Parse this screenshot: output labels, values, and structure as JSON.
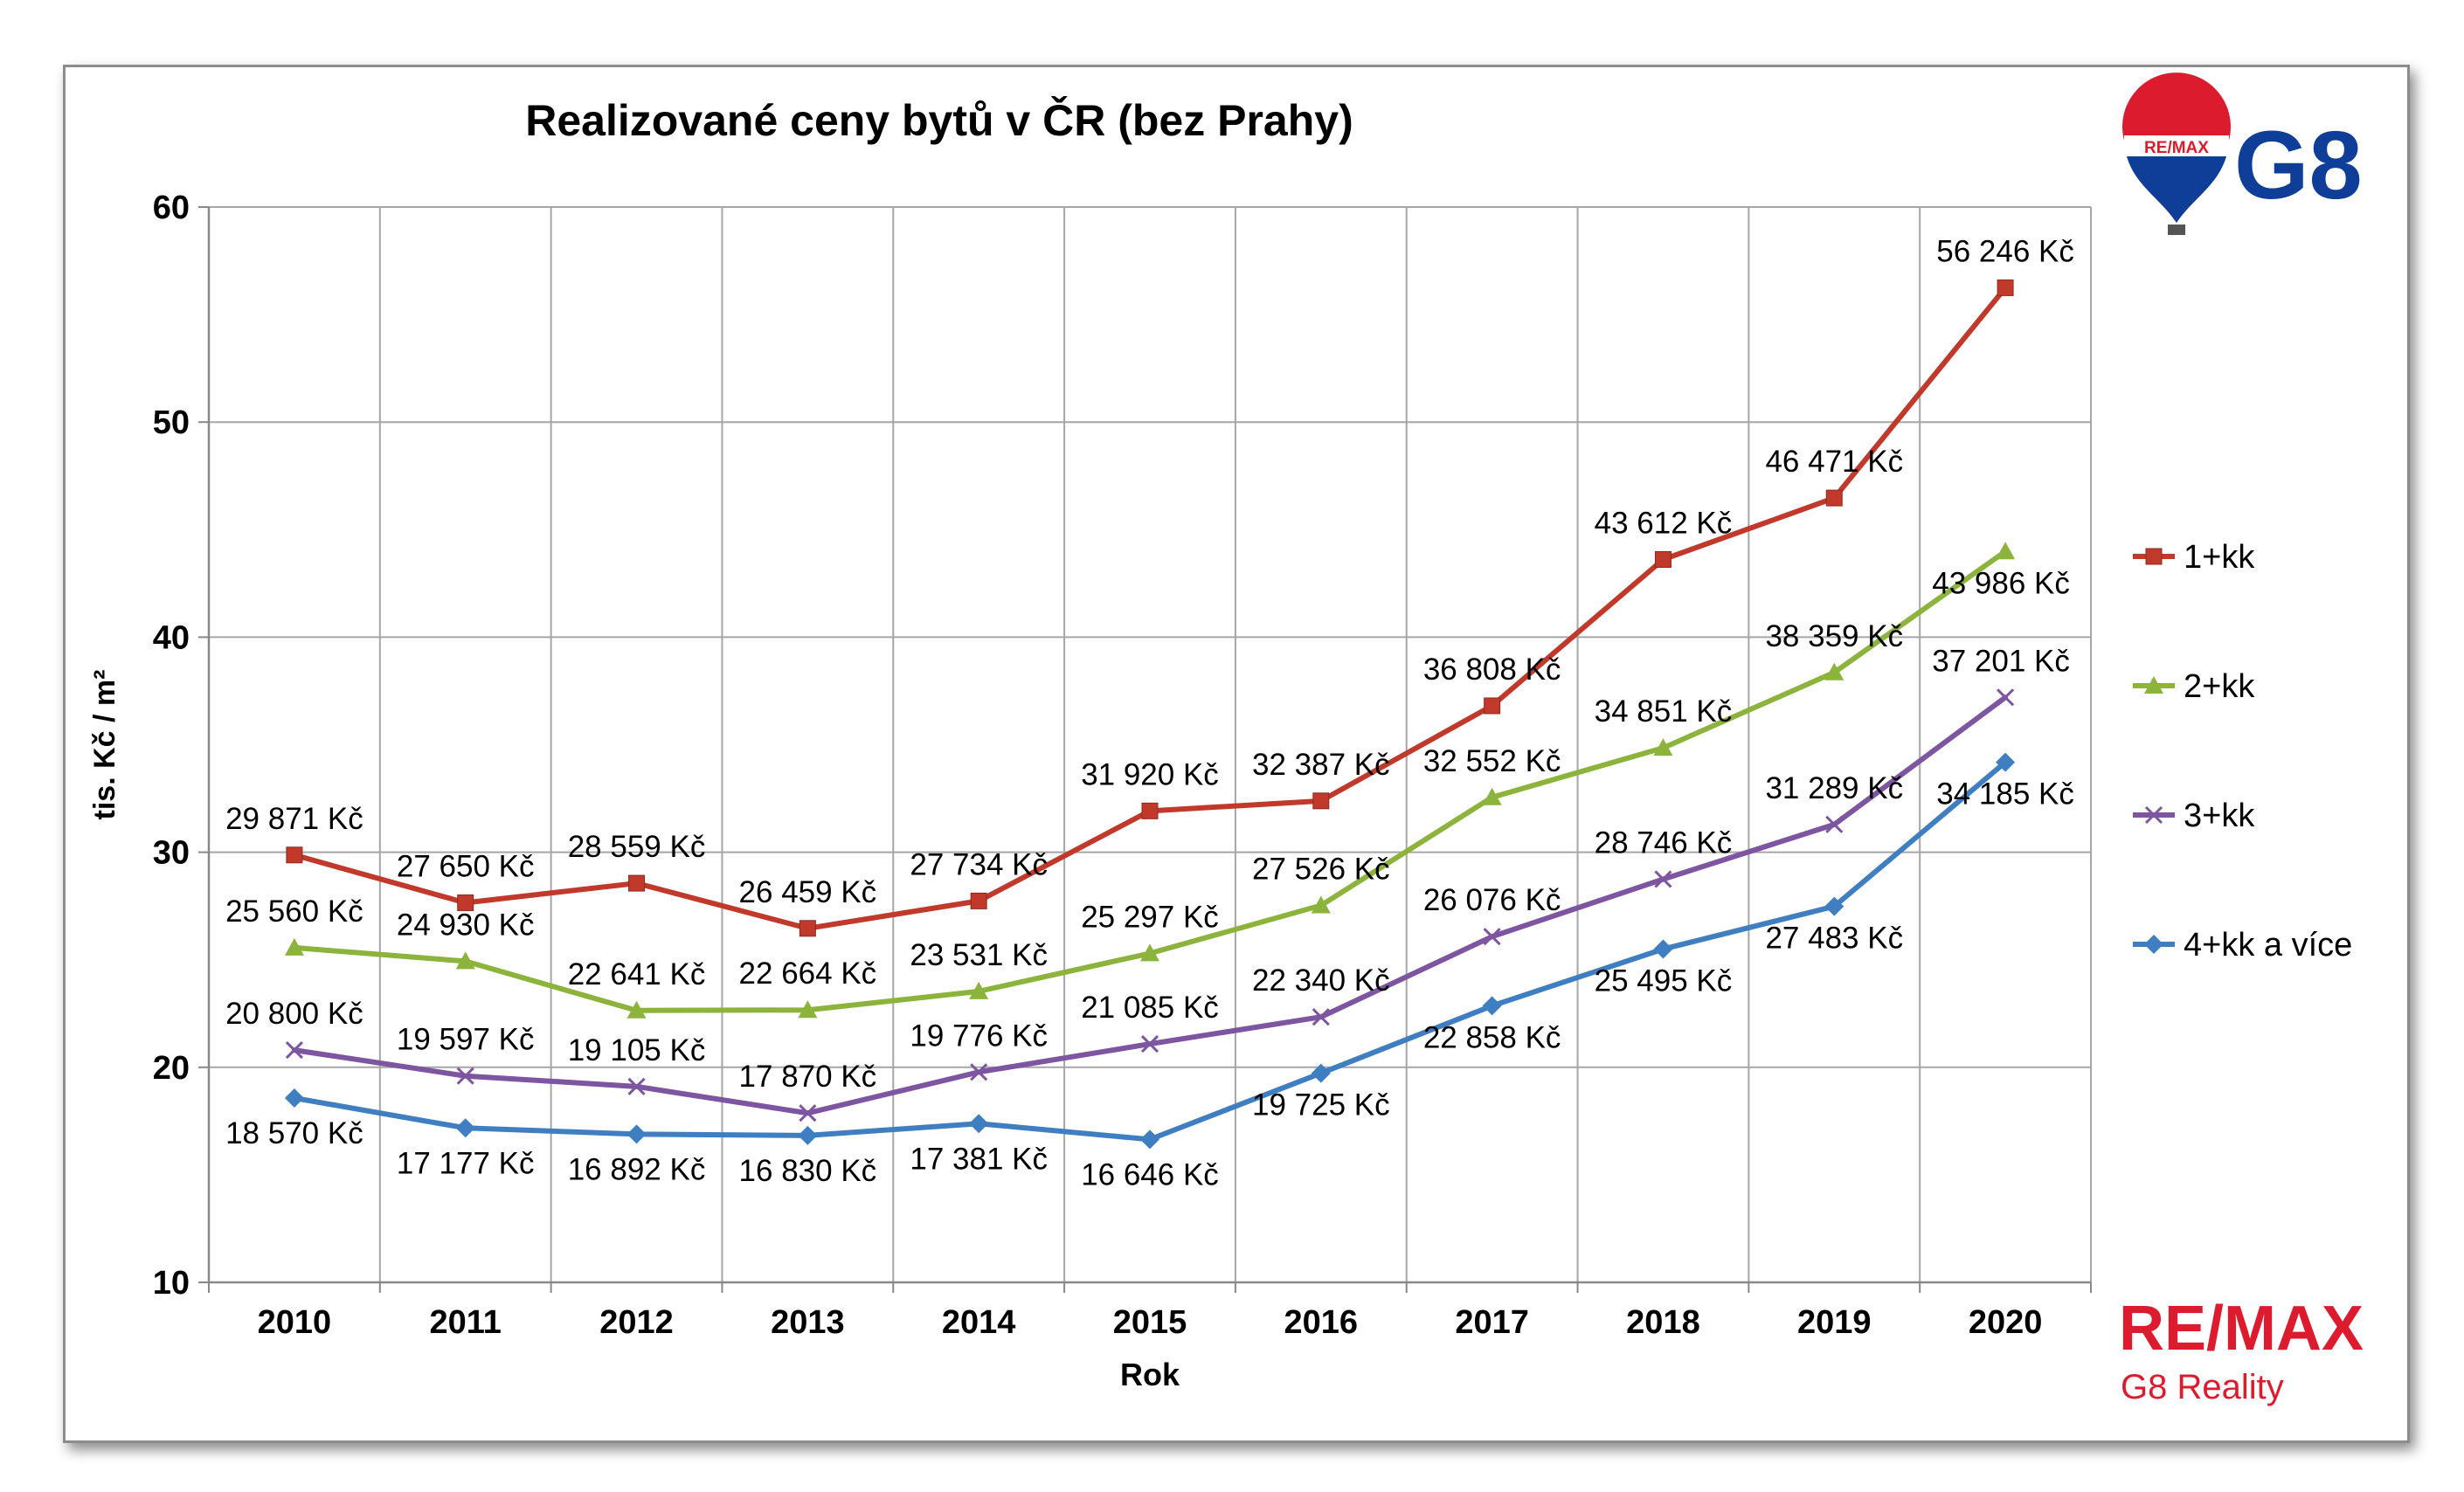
{
  "chart_data": {
    "type": "line",
    "title": "Realizované ceny bytů v ČR (bez Prahy)",
    "xlabel": "Rok",
    "ylabel": "tis. Kč / m²",
    "ylim": [
      10,
      60
    ],
    "yticks": [
      "10",
      "20",
      "30",
      "40",
      "50",
      "60"
    ],
    "categories": [
      "2010",
      "2011",
      "2012",
      "2013",
      "2014",
      "2015",
      "2016",
      "2017",
      "2018",
      "2019",
      "2020"
    ],
    "grid": true,
    "legend_position": "right",
    "series": [
      {
        "name": "1+kk",
        "color": "#c0392b",
        "marker": "square",
        "values": [
          29.871,
          27.65,
          28.559,
          26.459,
          27.734,
          31.92,
          32.387,
          36.808,
          43.612,
          46.471,
          56.246
        ],
        "labels": [
          "29 871 Kč",
          "27 650 Kč",
          "28 559 Kč",
          "26 459 Kč",
          "27 734 Kč",
          "31 920 Kč",
          "32 387 Kč",
          "36 808 Kč",
          "43 612 Kč",
          "46 471 Kč",
          "56 246 Kč"
        ]
      },
      {
        "name": "2+kk",
        "color": "#8cb43c",
        "marker": "triangle",
        "values": [
          25.56,
          24.93,
          22.641,
          22.664,
          23.531,
          25.297,
          27.526,
          32.552,
          34.851,
          38.359,
          43.986
        ],
        "labels": [
          "25 560 Kč",
          "24 930 Kč",
          "22 641 Kč",
          "22 664 Kč",
          "23 531 Kč",
          "25 297 Kč",
          "27 526 Kč",
          "32 552 Kč",
          "34 851 Kč",
          "38 359 Kč",
          "43 986 Kč"
        ]
      },
      {
        "name": "3+kk",
        "color": "#7d55a0",
        "marker": "x",
        "values": [
          20.8,
          19.597,
          19.105,
          17.87,
          19.776,
          21.085,
          22.34,
          26.076,
          28.746,
          31.289,
          37.201
        ],
        "labels": [
          "20 800 Kč",
          "19 597 Kč",
          "19 105 Kč",
          "17 870 Kč",
          "19 776 Kč",
          "21 085 Kč",
          "22 340 Kč",
          "26 076 Kč",
          "28 746 Kč",
          "31 289 Kč",
          "37 201 Kč"
        ]
      },
      {
        "name": "4+kk a více",
        "color": "#3f7fc1",
        "marker": "diamond",
        "values": [
          18.57,
          17.177,
          16.892,
          16.83,
          17.381,
          16.646,
          19.725,
          22.858,
          25.495,
          27.483,
          34.185
        ],
        "labels": [
          "18 570 Kč",
          "17 177 Kč",
          "16 892 Kč",
          "16 830 Kč",
          "17 381 Kč",
          "16 646 Kč",
          "19 725 Kč",
          "22 858 Kč",
          "25 495 Kč",
          "27 483 Kč",
          "34 185 Kč"
        ]
      }
    ]
  },
  "logos": {
    "balloon_text": "RE/MAX",
    "top_brand": "G8",
    "bottom_brand": "RE/MAX",
    "bottom_sub": "G8 Reality",
    "brand_red": "#dc1c2e",
    "brand_blue": "#0f3e99"
  }
}
